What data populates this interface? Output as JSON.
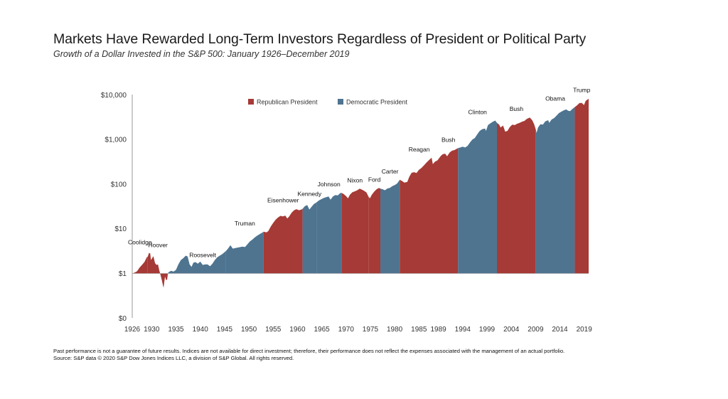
{
  "header": {
    "title": "Markets Have Rewarded Long-Term Investors Regardless of President or Political Party",
    "subtitle": "Growth of a Dollar Invested in the S&P 500: January 1926–December 2019"
  },
  "footer": {
    "disclaimer": "Past performance is not a guarantee of future results. Indices are not available for direct investment; therefore, their performance does not reflect the expenses associated with the management of an actual portfolio.",
    "source": "Source: S&P data © 2020 S&P Dow Jones Indices LLC, a division of S&P Global. All rights reserved."
  },
  "colors": {
    "republican": "#a63a36",
    "democratic": "#4e7490",
    "axis": "#555555"
  },
  "chart_data": {
    "type": "area",
    "scale": "log",
    "x_range": [
      1926,
      2019.92
    ],
    "y_tick_labels": [
      "$0",
      "$1",
      "$10",
      "$100",
      "$1,000",
      "$10,000"
    ],
    "y_tick_values": [
      0.1,
      1,
      10,
      100,
      1000,
      10000
    ],
    "x_tick_labels": [
      "1926",
      "1930",
      "1935",
      "1940",
      "1945",
      "1950",
      "1955",
      "1960",
      "1965",
      "1970",
      "1975",
      "1980",
      "1985",
      "1989",
      "1994",
      "1999",
      "2004",
      "2009",
      "2014",
      "2019"
    ],
    "legend": [
      {
        "label": "Republican President",
        "party": "R"
      },
      {
        "label": "Democratic President",
        "party": "D"
      }
    ],
    "presidents": [
      {
        "name": "Coolidge",
        "party": "R",
        "start": 1926.0,
        "end": 1929.17
      },
      {
        "name": "Hoover",
        "party": "R",
        "start": 1929.17,
        "end": 1933.17
      },
      {
        "name": "Roosevelt",
        "party": "D",
        "start": 1933.17,
        "end": 1945.3
      },
      {
        "name": "Truman",
        "party": "D",
        "start": 1945.3,
        "end": 1953.05
      },
      {
        "name": "Eisenhower",
        "party": "R",
        "start": 1953.05,
        "end": 1961.05
      },
      {
        "name": "Kennedy",
        "party": "D",
        "start": 1961.05,
        "end": 1963.9
      },
      {
        "name": "Johnson",
        "party": "D",
        "start": 1963.9,
        "end": 1969.05
      },
      {
        "name": "Nixon",
        "party": "R",
        "start": 1969.05,
        "end": 1974.6
      },
      {
        "name": "Ford",
        "party": "R",
        "start": 1974.6,
        "end": 1977.05
      },
      {
        "name": "Carter",
        "party": "D",
        "start": 1977.05,
        "end": 1981.05
      },
      {
        "name": "Reagan",
        "party": "R",
        "start": 1981.05,
        "end": 1989.05
      },
      {
        "name": "Bush",
        "party": "R",
        "start": 1989.05,
        "end": 1993.05
      },
      {
        "name": "Clinton",
        "party": "D",
        "start": 1993.05,
        "end": 2001.05
      },
      {
        "name": "Bush",
        "party": "R",
        "start": 2001.05,
        "end": 2009.05
      },
      {
        "name": "Obama",
        "party": "D",
        "start": 2009.05,
        "end": 2017.05
      },
      {
        "name": "Trump",
        "party": "R",
        "start": 2017.05,
        "end": 2019.92
      }
    ],
    "series": [
      {
        "values": [
          [
            1926.0,
            1.0
          ],
          [
            1926.5,
            1.05
          ],
          [
            1927.0,
            1.12
          ],
          [
            1927.5,
            1.35
          ],
          [
            1928.0,
            1.55
          ],
          [
            1928.5,
            1.8
          ],
          [
            1929.0,
            2.3
          ],
          [
            1929.2,
            2.4
          ],
          [
            1929.45,
            2.9
          ],
          [
            1929.7,
            2.8
          ],
          [
            1929.85,
            2.0
          ],
          [
            1930.1,
            2.2
          ],
          [
            1930.35,
            2.45
          ],
          [
            1930.7,
            1.7
          ],
          [
            1931.0,
            1.55
          ],
          [
            1931.3,
            1.6
          ],
          [
            1931.55,
            1.2
          ],
          [
            1931.8,
            0.95
          ],
          [
            1932.1,
            0.7
          ],
          [
            1932.3,
            0.55
          ],
          [
            1932.45,
            0.48
          ],
          [
            1932.6,
            0.65
          ],
          [
            1932.75,
            0.85
          ],
          [
            1932.95,
            0.72
          ],
          [
            1933.17,
            0.72
          ],
          [
            1933.4,
            1.05
          ],
          [
            1933.7,
            1.1
          ],
          [
            1934.0,
            1.15
          ],
          [
            1934.5,
            1.1
          ],
          [
            1935.0,
            1.2
          ],
          [
            1935.5,
            1.6
          ],
          [
            1936.0,
            2.0
          ],
          [
            1936.5,
            2.2
          ],
          [
            1937.0,
            2.5
          ],
          [
            1937.4,
            2.4
          ],
          [
            1937.8,
            1.6
          ],
          [
            1938.2,
            1.4
          ],
          [
            1938.6,
            1.75
          ],
          [
            1939.0,
            1.8
          ],
          [
            1939.5,
            1.65
          ],
          [
            1940.0,
            1.85
          ],
          [
            1940.5,
            1.55
          ],
          [
            1941.0,
            1.6
          ],
          [
            1941.5,
            1.6
          ],
          [
            1942.0,
            1.45
          ],
          [
            1942.5,
            1.65
          ],
          [
            1943.0,
            2.0
          ],
          [
            1943.5,
            2.3
          ],
          [
            1944.0,
            2.5
          ],
          [
            1944.5,
            2.7
          ],
          [
            1945.0,
            3.0
          ],
          [
            1945.3,
            3.2
          ],
          [
            1945.7,
            3.6
          ],
          [
            1946.2,
            4.3
          ],
          [
            1946.7,
            3.6
          ],
          [
            1947.2,
            3.7
          ],
          [
            1947.7,
            3.8
          ],
          [
            1948.2,
            3.9
          ],
          [
            1948.7,
            4.0
          ],
          [
            1949.2,
            3.9
          ],
          [
            1949.7,
            4.5
          ],
          [
            1950.2,
            5.2
          ],
          [
            1950.7,
            5.7
          ],
          [
            1951.2,
            6.4
          ],
          [
            1951.7,
            7.0
          ],
          [
            1952.2,
            7.6
          ],
          [
            1952.7,
            8.1
          ],
          [
            1953.05,
            8.6
          ],
          [
            1953.6,
            8.3
          ],
          [
            1954.0,
            8.9
          ],
          [
            1954.5,
            11.2
          ],
          [
            1955.0,
            13.5
          ],
          [
            1955.5,
            16.0
          ],
          [
            1956.0,
            18.0
          ],
          [
            1956.5,
            19.5
          ],
          [
            1957.0,
            19.0
          ],
          [
            1957.5,
            19.8
          ],
          [
            1957.9,
            17.0
          ],
          [
            1958.3,
            19.0
          ],
          [
            1958.8,
            23.0
          ],
          [
            1959.3,
            26.0
          ],
          [
            1959.8,
            27.5
          ],
          [
            1960.3,
            26.0
          ],
          [
            1960.8,
            27.0
          ],
          [
            1961.05,
            28.0
          ],
          [
            1961.5,
            32.0
          ],
          [
            1962.0,
            34.0
          ],
          [
            1962.45,
            27.0
          ],
          [
            1962.9,
            31.0
          ],
          [
            1963.4,
            36.0
          ],
          [
            1963.9,
            39.0
          ],
          [
            1964.4,
            43.0
          ],
          [
            1964.9,
            46.0
          ],
          [
            1965.4,
            49.0
          ],
          [
            1965.9,
            51.0
          ],
          [
            1966.4,
            53.0
          ],
          [
            1966.8,
            45.0
          ],
          [
            1967.3,
            53.0
          ],
          [
            1967.8,
            57.0
          ],
          [
            1968.3,
            56.0
          ],
          [
            1968.8,
            63.0
          ],
          [
            1969.05,
            64.0
          ],
          [
            1969.5,
            60.0
          ],
          [
            1970.0,
            54.0
          ],
          [
            1970.4,
            48.0
          ],
          [
            1970.8,
            58.0
          ],
          [
            1971.3,
            66.0
          ],
          [
            1971.8,
            69.0
          ],
          [
            1972.3,
            73.0
          ],
          [
            1972.8,
            79.0
          ],
          [
            1973.2,
            76.0
          ],
          [
            1973.7,
            71.0
          ],
          [
            1974.2,
            65.0
          ],
          [
            1974.6,
            53.0
          ],
          [
            1974.9,
            48.0
          ],
          [
            1975.3,
            58.0
          ],
          [
            1975.8,
            68.0
          ],
          [
            1976.3,
            77.0
          ],
          [
            1976.8,
            82.0
          ],
          [
            1977.05,
            79.0
          ],
          [
            1977.5,
            77.0
          ],
          [
            1978.0,
            73.0
          ],
          [
            1978.5,
            80.0
          ],
          [
            1979.0,
            82.0
          ],
          [
            1979.5,
            90.0
          ],
          [
            1980.0,
            95.0
          ],
          [
            1980.5,
            103.0
          ],
          [
            1981.05,
            125.0
          ],
          [
            1981.5,
            118.0
          ],
          [
            1982.0,
            108.0
          ],
          [
            1982.6,
            112.0
          ],
          [
            1983.0,
            145.0
          ],
          [
            1983.5,
            180.0
          ],
          [
            1984.0,
            185.0
          ],
          [
            1984.5,
            178.0
          ],
          [
            1985.0,
            210.0
          ],
          [
            1985.5,
            230.0
          ],
          [
            1986.0,
            260.0
          ],
          [
            1986.5,
            300.0
          ],
          [
            1987.0,
            340.0
          ],
          [
            1987.6,
            390.0
          ],
          [
            1987.85,
            280.0
          ],
          [
            1988.3,
            320.0
          ],
          [
            1988.8,
            340.0
          ],
          [
            1989.05,
            370.0
          ],
          [
            1989.5,
            430.0
          ],
          [
            1989.9,
            470.0
          ],
          [
            1990.4,
            480.0
          ],
          [
            1990.8,
            420.0
          ],
          [
            1991.3,
            510.0
          ],
          [
            1991.8,
            560.0
          ],
          [
            1992.3,
            580.0
          ],
          [
            1992.8,
            620.0
          ],
          [
            1993.05,
            640.0
          ],
          [
            1993.5,
            660.0
          ],
          [
            1994.0,
            690.0
          ],
          [
            1994.5,
            660.0
          ],
          [
            1995.0,
            720.0
          ],
          [
            1995.5,
            860.0
          ],
          [
            1996.0,
            1000.0
          ],
          [
            1996.5,
            1080.0
          ],
          [
            1997.0,
            1300.0
          ],
          [
            1997.5,
            1550.0
          ],
          [
            1998.0,
            1700.0
          ],
          [
            1998.6,
            1750.0
          ],
          [
            1998.8,
            1550.0
          ],
          [
            1999.2,
            2100.0
          ],
          [
            1999.7,
            2300.0
          ],
          [
            2000.2,
            2500.0
          ],
          [
            2000.7,
            2650.0
          ],
          [
            2001.05,
            2350.0
          ],
          [
            2001.5,
            2150.0
          ],
          [
            2001.8,
            1850.0
          ],
          [
            2002.3,
            2050.0
          ],
          [
            2002.75,
            1500.0
          ],
          [
            2003.2,
            1550.0
          ],
          [
            2003.7,
            1900.0
          ],
          [
            2004.2,
            2150.0
          ],
          [
            2004.7,
            2100.0
          ],
          [
            2005.2,
            2250.0
          ],
          [
            2005.7,
            2350.0
          ],
          [
            2006.2,
            2500.0
          ],
          [
            2006.7,
            2600.0
          ],
          [
            2007.2,
            2900.0
          ],
          [
            2007.8,
            3100.0
          ],
          [
            2008.3,
            2700.0
          ],
          [
            2008.7,
            2200.0
          ],
          [
            2009.05,
            1650.0
          ],
          [
            2009.2,
            1400.0
          ],
          [
            2009.5,
            1850.0
          ],
          [
            2010.0,
            2200.0
          ],
          [
            2010.5,
            2150.0
          ],
          [
            2011.0,
            2550.0
          ],
          [
            2011.6,
            2700.0
          ],
          [
            2011.8,
            2350.0
          ],
          [
            2012.3,
            2800.0
          ],
          [
            2012.8,
            3000.0
          ],
          [
            2013.3,
            3400.0
          ],
          [
            2013.8,
            3900.0
          ],
          [
            2014.3,
            4200.0
          ],
          [
            2014.8,
            4500.0
          ],
          [
            2015.3,
            4700.0
          ],
          [
            2015.7,
            4400.0
          ],
          [
            2016.1,
            4300.0
          ],
          [
            2016.6,
            4850.0
          ],
          [
            2017.05,
            5300.0
          ],
          [
            2017.5,
            5800.0
          ],
          [
            2018.0,
            6500.0
          ],
          [
            2018.5,
            6600.0
          ],
          [
            2018.95,
            5900.0
          ],
          [
            2019.3,
            7300.0
          ],
          [
            2019.92,
            8200.0
          ]
        ]
      }
    ]
  }
}
